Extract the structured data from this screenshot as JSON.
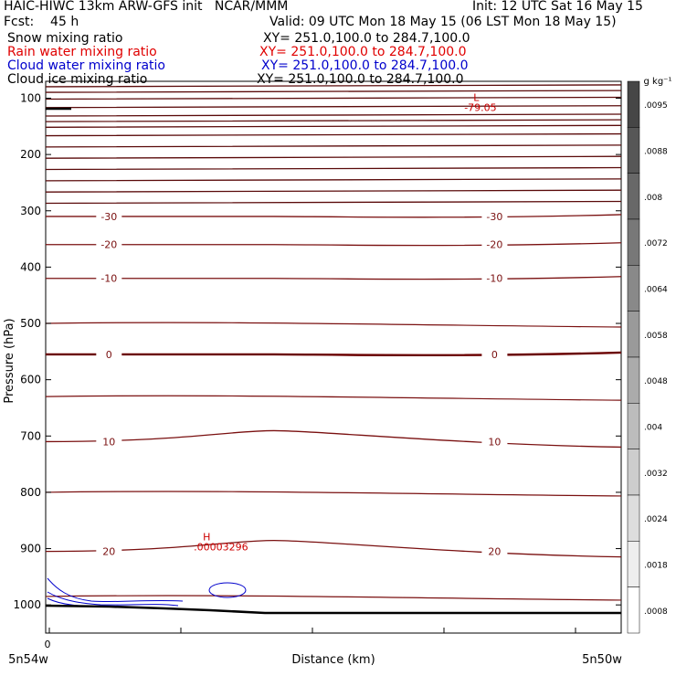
{
  "header": {
    "title_left": "HAIC-HIWC 13km ARW-GFS init   NCAR/MMM",
    "init_text": "Init: 12 UTC Sat 16 May 15",
    "fcst_label": "Fcst:    45 h",
    "valid_text": "Valid: 09 UTC Mon 18 May 15 (06 LST Mon 18 May 15)",
    "fields": [
      {
        "name": "Snow mixing ratio",
        "xy": "XY= 251.0,100.0 to 284.7,100.0",
        "color": "#000000"
      },
      {
        "name": "Rain water mixing ratio",
        "xy": "XY= 251.0,100.0 to 284.7,100.0",
        "color": "#e00000"
      },
      {
        "name": "Cloud water mixing ratio",
        "xy": "XY= 251.0,100.0 to 284.7,100.0",
        "color": "#0000cc"
      },
      {
        "name": "Cloud ice mixing ratio",
        "xy": "XY= 251.0,100.0 to 284.7,100.0",
        "color": "#000000"
      }
    ]
  },
  "chart_data": {
    "type": "contour cross-section",
    "xlabel": "Distance (km)",
    "ylabel": "Pressure (hPa)",
    "x_tick_labels": {
      "left_value": "0",
      "left_loc": "5n54w",
      "right_loc": "5n50w"
    },
    "y_ticks": [
      100,
      200,
      300,
      400,
      500,
      600,
      700,
      800,
      900,
      1000
    ],
    "ylim": [
      1050,
      70
    ],
    "y_scale": "linear",
    "temperature_contours": [
      {
        "label": "-30",
        "pressure": 310,
        "label_left": true,
        "label_right": true
      },
      {
        "label": "-20",
        "pressure": 360,
        "label_left": true,
        "label_right": true
      },
      {
        "label": "-10",
        "pressure": 420,
        "label_left": true,
        "label_right": true
      },
      {
        "label": "0",
        "pressure": 555,
        "label_left": true,
        "label_right": true,
        "bold": true
      },
      {
        "label": "10",
        "pressure": 710,
        "label_left": true,
        "label_right": true
      },
      {
        "label": "20",
        "pressure": 905,
        "label_left": true,
        "label_right": true
      }
    ],
    "extrema": [
      {
        "symbol": "L",
        "value": "-79.05",
        "x_frac": 0.74,
        "pressure": 105,
        "color": "#cc0000"
      },
      {
        "symbol": "H",
        "value": ".00003296",
        "x_frac": 0.27,
        "pressure": 885,
        "color": "#cc0000"
      }
    ],
    "colorbar": {
      "unit": "g kg⁻¹",
      "labels": [
        ".0095",
        ".0088",
        ".008",
        ".0072",
        ".0064",
        ".0058",
        ".0048",
        ".004",
        ".0032",
        ".0024",
        ".0018",
        ".0008"
      ]
    }
  }
}
